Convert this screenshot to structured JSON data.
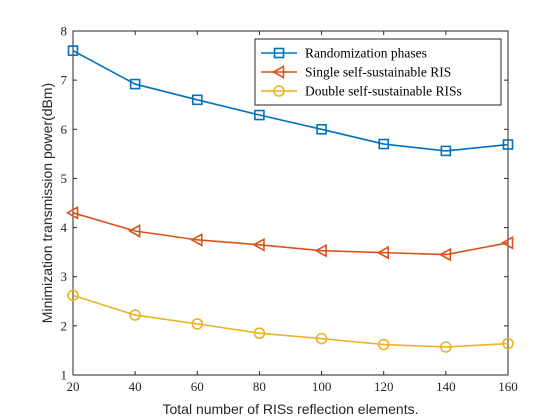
{
  "chart_data": {
    "type": "line",
    "xlabel": "Total number of RISs reflection elements.",
    "ylabel": "Minimization transmission power(dBm)",
    "xlim": [
      20,
      160
    ],
    "ylim": [
      1,
      8
    ],
    "x": [
      20,
      40,
      60,
      80,
      100,
      120,
      140,
      160
    ],
    "xticks": [
      "20",
      "40",
      "60",
      "80",
      "100",
      "120",
      "140",
      "160"
    ],
    "yticks": [
      "1",
      "2",
      "3",
      "4",
      "5",
      "6",
      "7",
      "8"
    ],
    "grid": false,
    "legend_position": "top-right",
    "series": [
      {
        "name": "Randomization phases",
        "color": "#0072BD",
        "marker": "square",
        "values": [
          7.6,
          6.92,
          6.6,
          6.29,
          6.0,
          5.7,
          5.56,
          5.69
        ]
      },
      {
        "name": "Single self-sustainable RIS",
        "color": "#D95319",
        "marker": "triangle-left",
        "values": [
          4.3,
          3.93,
          3.75,
          3.65,
          3.53,
          3.49,
          3.45,
          3.69
        ]
      },
      {
        "name": "Double self-sustainable RISs",
        "color": "#EDB120",
        "marker": "circle",
        "values": [
          2.62,
          2.22,
          2.04,
          1.85,
          1.74,
          1.62,
          1.57,
          1.64
        ]
      }
    ]
  }
}
